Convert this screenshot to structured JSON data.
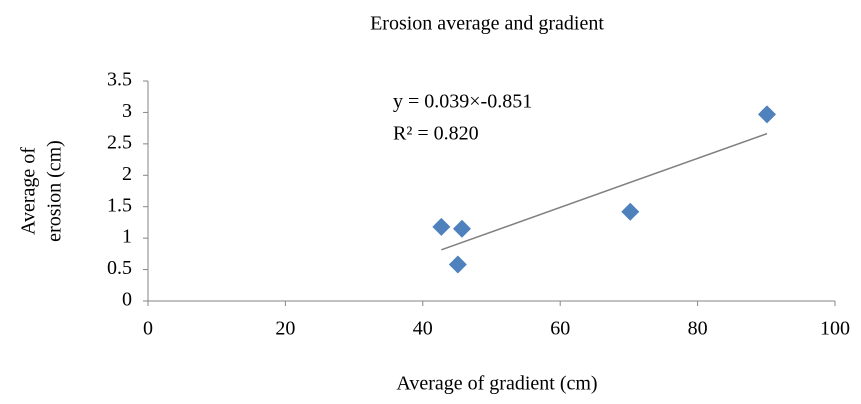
{
  "chart_data": {
    "type": "scatter",
    "title": "Erosion average and gradient",
    "xlabel": "Average of gradient (cm)",
    "ylabel": [
      "Average of",
      "erosion (cm)"
    ],
    "x": [
      42.7,
      45.7,
      45.1,
      70.2,
      90.1
    ],
    "y": [
      1.18,
      1.15,
      0.58,
      1.42,
      2.97
    ],
    "color": "#4f81bd",
    "xlim": [
      0,
      100
    ],
    "xticks": [
      0,
      20,
      40,
      60,
      80,
      100
    ],
    "ylim": [
      0,
      3.5
    ],
    "yticks": [
      0,
      0.5,
      1,
      1.5,
      2,
      2.5,
      3,
      3.5
    ],
    "trendline": {
      "slope": 0.039,
      "intercept": -0.851,
      "color": "#808080",
      "label": "y = 0.039×-0.851",
      "r2_label": "R² = 0.820"
    }
  }
}
